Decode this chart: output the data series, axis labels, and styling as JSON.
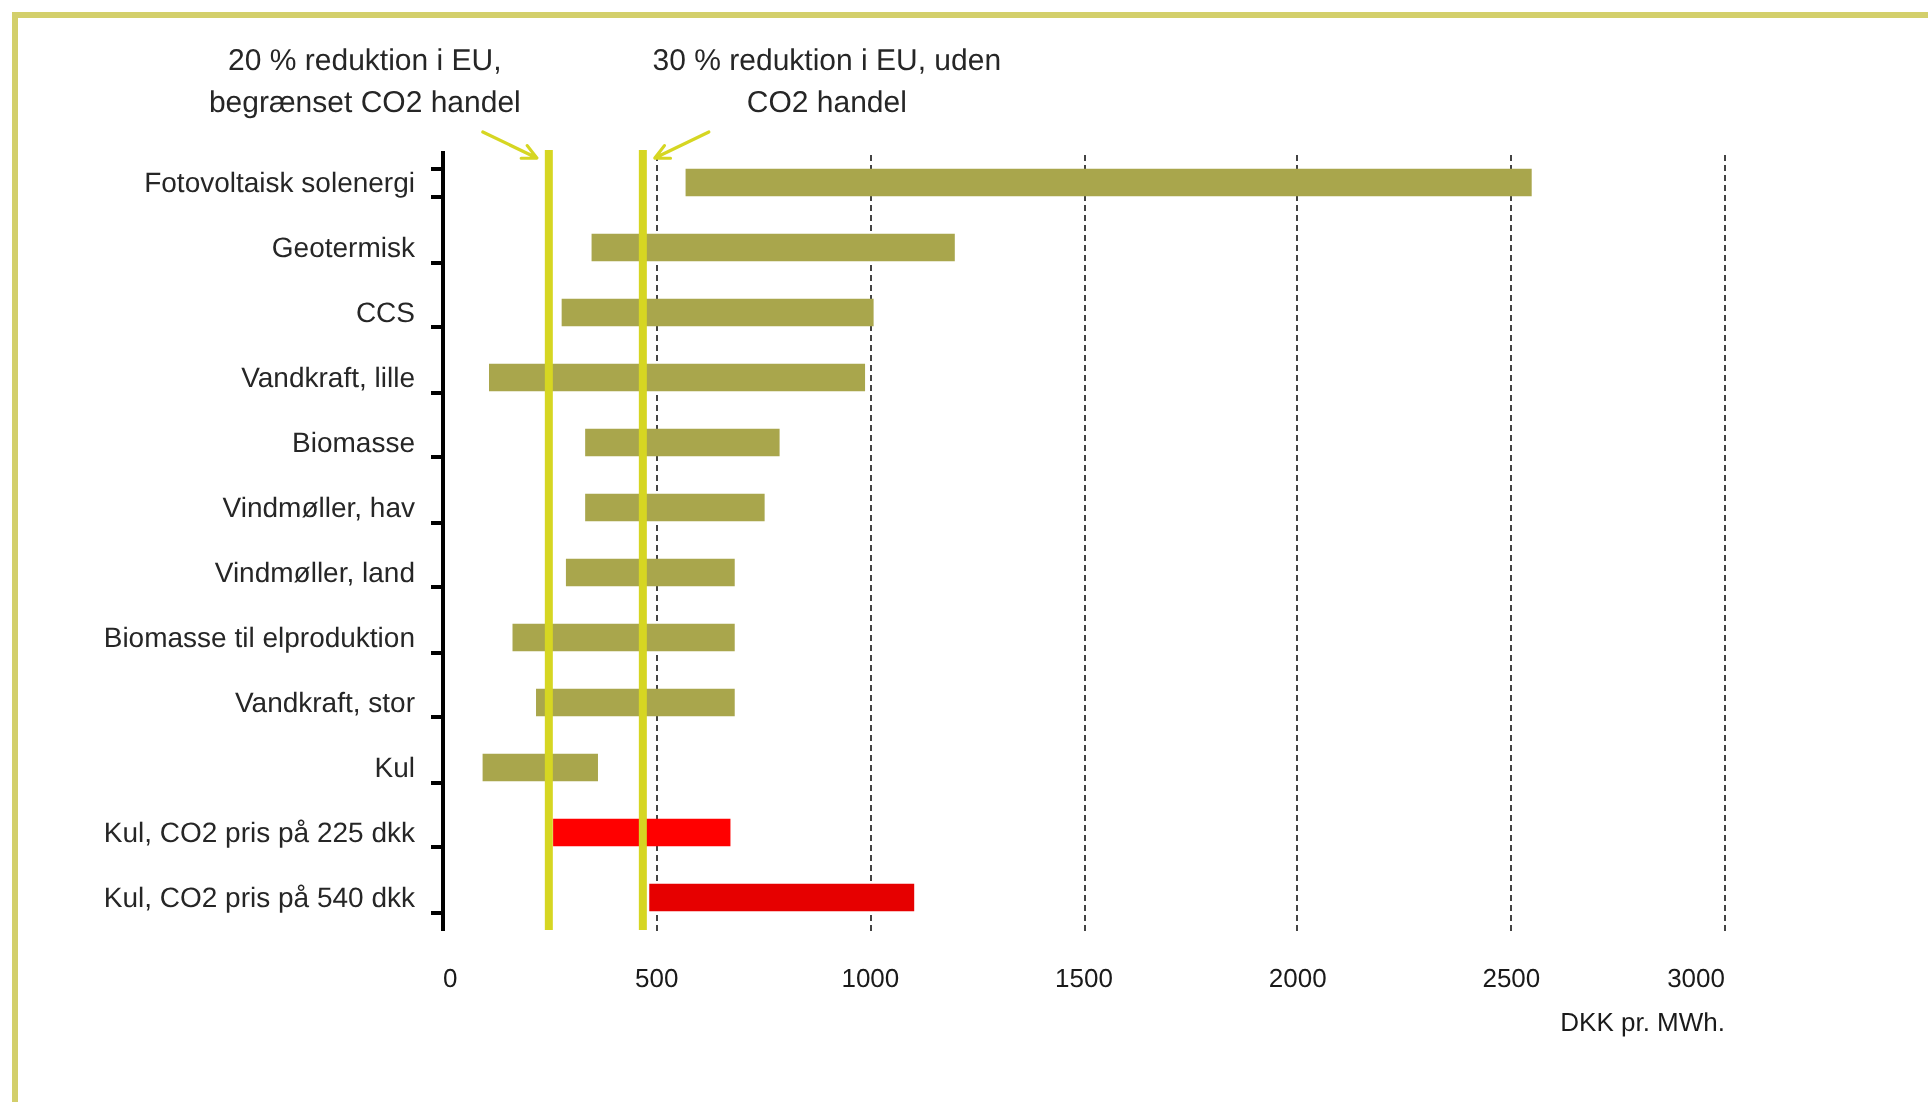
{
  "chart_data": {
    "type": "bar",
    "orientation": "horizontal",
    "categories": [
      "Fotovoltaisk solenergi",
      "Geotermisk",
      "CCS",
      "Vandkraft, lille",
      "Biomasse",
      "Vindmøller, hav",
      "Vindmøller, land",
      "Biomasse til elproduktion",
      "Vandkraft, stor",
      "Kul",
      "Kul, CO2 pris på 225 dkk",
      "Kul, CO2 pris på 540 dkk"
    ],
    "base": [
      570,
      350,
      280,
      110,
      335,
      335,
      290,
      165,
      220,
      95,
      260,
      485
    ],
    "values": [
      1980,
      850,
      730,
      880,
      455,
      420,
      395,
      520,
      465,
      270,
      415,
      620
    ],
    "colors": [
      "#a9a64c",
      "#a9a64c",
      "#a9a64c",
      "#a9a64c",
      "#a9a64c",
      "#a9a64c",
      "#a9a64c",
      "#a9a64c",
      "#a9a64c",
      "#a9a64c",
      "#ff0000",
      "#e60000"
    ],
    "xlabel": "DKK pr. MWh.",
    "xlim": [
      0,
      3000
    ],
    "xticks": [
      0,
      500,
      1000,
      1500,
      2000,
      2500,
      3000
    ],
    "grid": "x",
    "ref_lines": [
      {
        "axis": "x",
        "value": 250,
        "label": "20 % reduktion i EU, begrænset CO2 handel",
        "color": "#d6d622"
      },
      {
        "axis": "x",
        "value": 470,
        "label": "30 % reduktion i EU, uden CO2 handel",
        "color": "#d6d622"
      }
    ]
  }
}
